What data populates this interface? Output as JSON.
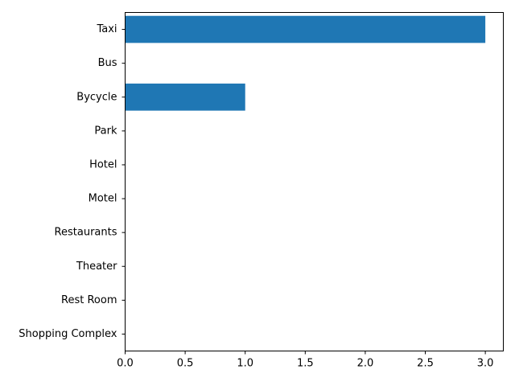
{
  "chart_data": {
    "type": "bar",
    "orientation": "horizontal",
    "categories": [
      "Taxi",
      "Bus",
      "Bycycle",
      "Park",
      "Hotel",
      "Motel",
      "Restaurants",
      "Theater",
      "Rest Room",
      "Shopping Complex"
    ],
    "values": [
      3,
      0,
      1,
      0,
      0,
      0,
      0,
      0,
      0,
      0
    ],
    "title": "",
    "xlabel": "",
    "ylabel": "",
    "xlim": [
      0,
      3.15
    ],
    "x_ticks": [
      0.0,
      0.5,
      1.0,
      1.5,
      2.0,
      2.5,
      3.0
    ],
    "x_tick_labels": [
      "0.0",
      "0.5",
      "1.0",
      "1.5",
      "2.0",
      "2.5",
      "3.0"
    ],
    "grid": false,
    "legend": "none",
    "colors": {
      "bar": "#1f77b4",
      "axis": "#000000",
      "background": "#ffffff"
    }
  }
}
